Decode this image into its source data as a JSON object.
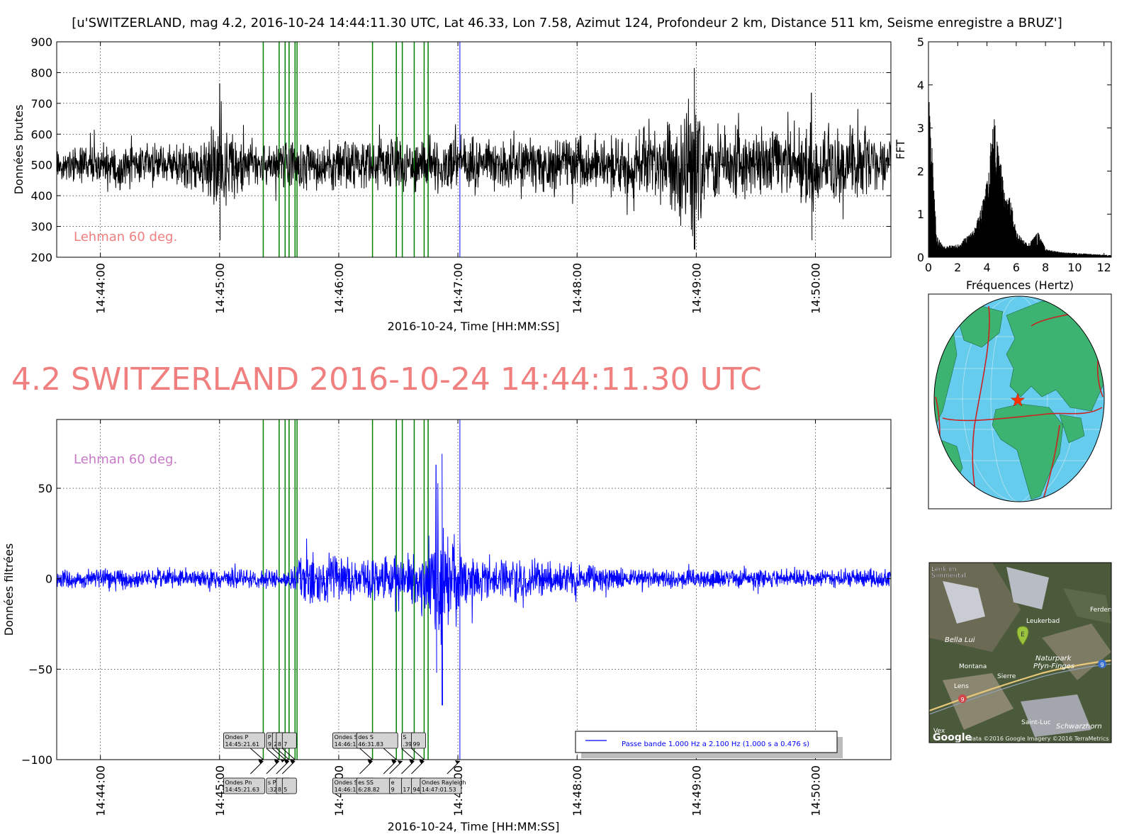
{
  "header": {
    "title": "[u'SWITZERLAND, mag 4.2, 2016-10-24 14:44:11.30 UTC, Lat 46.33, Lon 7.58, Azimut 124, Profondeur 2 km, Distance   511 km, Seisme enregistre a BRUZ']",
    "big_title": "4.2 SWITZERLAND 2016-10-24 14:44:11.30 UTC",
    "big_title_color": "#f08080"
  },
  "colors": {
    "raw_trace": "#000000",
    "filtered_trace": "#0000ff",
    "phase_lines": "#008000",
    "marker_line": "#0000ff",
    "lehman_top": "#f08080",
    "lehman_bottom": "#c77ac7",
    "ocean": "#66ccee",
    "land": "#3cb371",
    "plates": "#cc2222",
    "epicenter": "#ff3300",
    "satellite": "#4c5a3c"
  },
  "chart_data": [
    {
      "id": "raw",
      "type": "line",
      "title": "",
      "xlabel": "2016-10-24, Time [HH:MM:SS]",
      "ylabel": "Données brutes",
      "ylim": [
        200,
        900
      ],
      "yticks": [
        200,
        300,
        400,
        500,
        600,
        700,
        800,
        900
      ],
      "xlim": [
        "14:43:38",
        "14:50:38"
      ],
      "xticks": [
        "14:44:00",
        "14:45:00",
        "14:46:00",
        "14:47:00",
        "14:48:00",
        "14:49:00",
        "14:50:00"
      ],
      "grid": true,
      "annotation": "Lehman 60 deg.",
      "baseline": 500,
      "envelope": [
        {
          "t": "14:43:38",
          "amp": 70
        },
        {
          "t": "14:44:10",
          "amp": 85
        },
        {
          "t": "14:44:50",
          "amp": 90
        },
        {
          "t": "14:45:00",
          "amp": 200
        },
        {
          "t": "14:45:05",
          "amp": 130
        },
        {
          "t": "14:45:15",
          "amp": 80
        },
        {
          "t": "14:46:00",
          "amp": 95
        },
        {
          "t": "14:46:40",
          "amp": 110
        },
        {
          "t": "14:47:00",
          "amp": 100
        },
        {
          "t": "14:48:00",
          "amp": 100
        },
        {
          "t": "14:48:45",
          "amp": 150
        },
        {
          "t": "14:48:58",
          "amp": 260
        },
        {
          "t": "14:49:05",
          "amp": 150
        },
        {
          "t": "14:49:50",
          "amp": 120
        },
        {
          "t": "14:50:00",
          "amp": 180
        },
        {
          "t": "14:50:38",
          "amp": 90
        }
      ],
      "peaks": [
        {
          "t": "14:45:00",
          "max": 765,
          "min": 255
        },
        {
          "t": "14:48:59",
          "max": 815,
          "min": 225
        },
        {
          "t": "14:49:58",
          "max": 735,
          "min": 255
        }
      ],
      "phase_lines": [
        "14:45:22",
        "14:45:30",
        "14:45:33",
        "14:45:35",
        "14:45:38",
        "14:45:39",
        "14:46:17",
        "14:46:29",
        "14:46:32",
        "14:46:38",
        "14:46:43",
        "14:46:45"
      ],
      "marker_line": "14:47:01"
    },
    {
      "id": "fft",
      "type": "line",
      "title": "",
      "xlabel": "Fréquences (Hertz)",
      "ylabel": "FFT",
      "xlim": [
        0,
        12.5
      ],
      "ylim": [
        0,
        5
      ],
      "xticks": [
        0,
        2,
        4,
        6,
        8,
        10,
        12
      ],
      "yticks": [
        0,
        1,
        2,
        3,
        4,
        5
      ],
      "envelope": [
        {
          "f": 0.0,
          "a": 2.3
        },
        {
          "f": 0.05,
          "a": 3.6
        },
        {
          "f": 0.2,
          "a": 3.0
        },
        {
          "f": 0.4,
          "a": 1.4
        },
        {
          "f": 0.6,
          "a": 0.5
        },
        {
          "f": 1.0,
          "a": 0.25
        },
        {
          "f": 2.0,
          "a": 0.3
        },
        {
          "f": 3.0,
          "a": 0.6
        },
        {
          "f": 3.5,
          "a": 1.0
        },
        {
          "f": 4.0,
          "a": 1.8
        },
        {
          "f": 4.3,
          "a": 2.9
        },
        {
          "f": 4.5,
          "a": 3.2
        },
        {
          "f": 4.8,
          "a": 2.5
        },
        {
          "f": 5.3,
          "a": 1.5
        },
        {
          "f": 5.6,
          "a": 1.4
        },
        {
          "f": 6.0,
          "a": 0.6
        },
        {
          "f": 6.8,
          "a": 0.3
        },
        {
          "f": 7.5,
          "a": 0.6
        },
        {
          "f": 8.0,
          "a": 0.2
        },
        {
          "f": 9.0,
          "a": 0.12
        },
        {
          "f": 12.5,
          "a": 0.05
        }
      ]
    },
    {
      "id": "filtered",
      "type": "line",
      "title": "",
      "xlabel": "2016-10-24, Time [HH:MM:SS]",
      "ylabel": "Données filtrées",
      "ylim": [
        -100,
        88
      ],
      "yticks": [
        -100,
        -50,
        0,
        50
      ],
      "ytick_labels": [
        "−100",
        "−50",
        "0",
        "50"
      ],
      "xlim": [
        "14:43:38",
        "14:50:38"
      ],
      "xticks": [
        "14:44:00",
        "14:45:00",
        "14:46:00",
        "14:47:00",
        "14:48:00",
        "14:49:00",
        "14:50:00"
      ],
      "grid": true,
      "annotation": "Lehman 60 deg.",
      "legend": {
        "label": "Passe bande 1.000 Hz a 2.100 Hz (1.000 s a 0.476 s)",
        "placement": "lower-right"
      },
      "envelope": [
        {
          "t": "14:43:38",
          "amp": 6
        },
        {
          "t": "14:45:35",
          "amp": 6
        },
        {
          "t": "14:45:40",
          "amp": 16
        },
        {
          "t": "14:45:50",
          "amp": 15
        },
        {
          "t": "14:46:10",
          "amp": 13
        },
        {
          "t": "14:46:30",
          "amp": 15
        },
        {
          "t": "14:46:40",
          "amp": 22
        },
        {
          "t": "14:46:50",
          "amp": 38
        },
        {
          "t": "14:46:55",
          "amp": 34
        },
        {
          "t": "14:47:05",
          "amp": 18
        },
        {
          "t": "14:47:30",
          "amp": 13
        },
        {
          "t": "14:48:00",
          "amp": 9
        },
        {
          "t": "14:48:30",
          "amp": 6
        },
        {
          "t": "14:50:38",
          "amp": 6
        }
      ],
      "peaks": [
        {
          "t": "14:46:52",
          "max": 69,
          "min": -70
        },
        {
          "t": "14:46:49",
          "max": 63,
          "min": -52
        }
      ],
      "phase_lines": [
        "14:45:22",
        "14:45:30",
        "14:45:33",
        "14:45:35",
        "14:45:38",
        "14:45:39",
        "14:46:17",
        "14:46:29",
        "14:46:32",
        "14:46:38",
        "14:46:43",
        "14:46:45"
      ],
      "marker_line": "14:47:01",
      "phase_labels_top": [
        {
          "t": "14:45:22",
          "line1": "Ondes P",
          "line2": "14:45:21.61"
        },
        {
          "t": "14:45:30",
          "line1": "P",
          "line2": "9.14"
        },
        {
          "t": "14:45:33",
          "line1": "",
          "line2": "2"
        },
        {
          "t": "14:45:35",
          "line1": "",
          "line2": "8"
        },
        {
          "t": "14:45:38",
          "line1": "",
          "line2": "7"
        },
        {
          "t": "14:46:17",
          "line1": "Ondes Sn",
          "line2": "14:46:16.57"
        },
        {
          "t": "14:46:29",
          "line1": "des S",
          "line2": "46:31.83"
        },
        {
          "t": "14:46:38",
          "line1": "S",
          "line2": ".39"
        },
        {
          "t": "14:46:43",
          "line1": "",
          "line2": "99"
        }
      ],
      "phase_labels_bottom": [
        {
          "t": "14:45:22",
          "line1": "Ondes Pn",
          "line2": "14:45:21.63"
        },
        {
          "t": "14:45:30",
          "line1": "s P",
          "line2": ":32.43"
        },
        {
          "t": "14:45:35",
          "line1": "",
          "line2": "8"
        },
        {
          "t": "14:45:38",
          "line1": "",
          "line2": "5"
        },
        {
          "t": "14:46:17",
          "line1": "Ondes S",
          "line2": "14:46:16.53"
        },
        {
          "t": "14:46:29",
          "line1": "es SS",
          "line2": "6:28.82"
        },
        {
          "t": "14:46:32",
          "line1": "e",
          "line2": "9"
        },
        {
          "t": "14:46:38",
          "line1": "",
          "line2": "17"
        },
        {
          "t": "14:46:43",
          "line1": "",
          "line2": "94"
        },
        {
          "t": "14:47:01",
          "line1": "Ondes Rayleigh",
          "line2": "14:47:01.53"
        }
      ]
    }
  ],
  "world_map": {
    "epicenter": {
      "lat": 46.33,
      "lon": 7.58
    }
  },
  "satellite_map": {
    "labels": [
      "Lenk im Simmental",
      "Leukerbad",
      "Ferden",
      "Bella Lui",
      "Naturpark Pfyn-Finges",
      "Montana",
      "Sierre",
      "Lens",
      "Saint-Luc",
      "Schwarzhorn",
      "Vex"
    ],
    "marker": "E",
    "road_badges": [
      "9",
      "9"
    ],
    "logo": "Google",
    "attribution": "data ©2016 Google  Imagery ©2016 TerraMetrics"
  }
}
